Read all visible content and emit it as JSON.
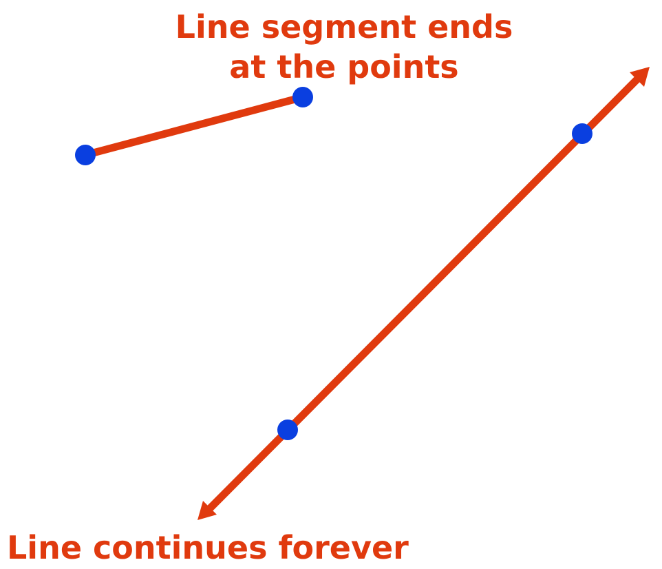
{
  "labels": {
    "segment_line1": "Line segment ends",
    "segment_line2": "at the points",
    "line": "Line continues forever"
  },
  "colors": {
    "text": "#e03a0e",
    "line": "#e03a0e",
    "point": "#0a3fe0",
    "background": "#ffffff"
  },
  "figures": {
    "line_segment": {
      "endpoints": 2,
      "arrowheads": 0
    },
    "line": {
      "marked_points": 2,
      "arrowheads": 2
    }
  }
}
